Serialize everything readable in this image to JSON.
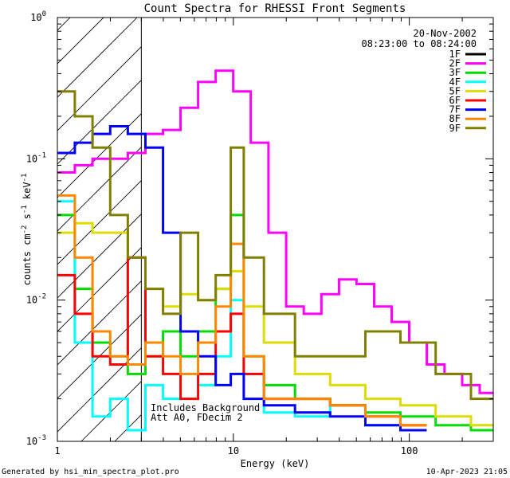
{
  "chart_data": {
    "type": "line",
    "title": "Count Spectra for RHESSI Front Segments",
    "xlabel": "Energy (keV)",
    "ylabel_parts": {
      "a": "counts cm",
      "b": "-2",
      "c": " s",
      "d": "-1",
      "e": " keV",
      "f": "-1"
    },
    "x_scale": "log",
    "y_scale": "log",
    "xlim": [
      1,
      300
    ],
    "ylim": [
      0.001,
      1
    ],
    "x_ticks": [
      {
        "v": 1,
        "label": "1"
      },
      {
        "v": 10,
        "label": "10"
      },
      {
        "v": 100,
        "label": "100"
      }
    ],
    "y_ticks": [
      {
        "v": 0.001,
        "base": "10",
        "exp": "-3"
      },
      {
        "v": 0.01,
        "base": "10",
        "exp": "-2"
      },
      {
        "v": 0.1,
        "base": "10",
        "exp": "-1"
      },
      {
        "v": 1,
        "base": "10",
        "exp": "0"
      }
    ],
    "date": "20-Nov-2002",
    "time_range": "08:23:00 to 08:24:00",
    "annotation_lines": [
      "Includes Background",
      "Att A0, FDecim 2"
    ],
    "hatch_region_keV": [
      1,
      3
    ],
    "series": [
      {
        "name": "1F",
        "color": "#000000",
        "x": [],
        "y": []
      },
      {
        "name": "2F",
        "color": "#ff00ff",
        "x": [
          1.12,
          1.41,
          1.78,
          2.24,
          2.82,
          3.55,
          4.47,
          5.62,
          7.08,
          8.91,
          11.2,
          14.1,
          17.8,
          22.4,
          28.2,
          35.5,
          44.7,
          56.2,
          70.8,
          89.1,
          112,
          141,
          178,
          224,
          282
        ],
        "y": [
          0.08,
          0.09,
          0.1,
          0.1,
          0.11,
          0.15,
          0.16,
          0.23,
          0.35,
          0.42,
          0.3,
          0.13,
          0.03,
          0.009,
          0.008,
          0.011,
          0.014,
          0.013,
          0.009,
          0.007,
          0.005,
          0.0035,
          0.003,
          0.0025,
          0.0022
        ]
      },
      {
        "name": "3F",
        "color": "#00dd00",
        "x": [
          1.12,
          1.41,
          1.78,
          2.24,
          2.82,
          3.55,
          4.47,
          5.62,
          7.08,
          8.91,
          10.5,
          12.5,
          17.8,
          28.2,
          44.7,
          70.8,
          112,
          178,
          282
        ],
        "y": [
          0.04,
          0.012,
          0.005,
          0.004,
          0.003,
          0.004,
          0.006,
          0.004,
          0.006,
          0.012,
          0.04,
          0.004,
          0.0025,
          0.002,
          0.0018,
          0.0016,
          0.0015,
          0.0013,
          0.0012
        ]
      },
      {
        "name": "4F",
        "color": "#00ffff",
        "x": [
          1.12,
          1.41,
          1.78,
          2.24,
          2.82,
          3.55,
          4.47,
          5.62,
          7.08,
          8.91,
          10.5,
          12.5,
          17.8,
          28.2,
          44.7,
          70.8,
          112
        ],
        "y": [
          0.05,
          0.005,
          0.0015,
          0.002,
          0.0012,
          0.0025,
          0.002,
          0.003,
          0.0025,
          0.004,
          0.01,
          0.003,
          0.0016,
          0.0015,
          0.0018,
          0.0013,
          0.0012
        ]
      },
      {
        "name": "5F",
        "color": "#dddd00",
        "x": [
          1.12,
          1.41,
          1.78,
          2.24,
          2.82,
          3.55,
          4.47,
          5.62,
          7.08,
          8.91,
          10.5,
          12.5,
          17.8,
          28.2,
          44.7,
          70.8,
          112,
          178,
          282
        ],
        "y": [
          0.03,
          0.035,
          0.03,
          0.03,
          0.02,
          0.012,
          0.009,
          0.011,
          0.01,
          0.012,
          0.016,
          0.009,
          0.005,
          0.003,
          0.0025,
          0.002,
          0.0018,
          0.0015,
          0.0013
        ]
      },
      {
        "name": "6F",
        "color": "#ff0000",
        "x": [
          1.12,
          1.41,
          1.78,
          2.24,
          2.82,
          3.55,
          4.47,
          5.62,
          7.08,
          8.91,
          10.5,
          12.5,
          17.8,
          28.2,
          44.7,
          70.8,
          112
        ],
        "y": [
          0.015,
          0.008,
          0.004,
          0.0035,
          0.02,
          0.004,
          0.003,
          0.002,
          0.003,
          0.006,
          0.008,
          0.003,
          0.002,
          0.002,
          0.0018,
          0.0015,
          0.0013
        ]
      },
      {
        "name": "7F",
        "color": "#0000ff",
        "x": [
          1.12,
          1.41,
          1.78,
          2.24,
          2.82,
          3.55,
          4.47,
          5.62,
          7.08,
          8.91,
          10.5,
          12.5,
          17.8,
          28.2,
          44.7,
          70.8,
          112
        ],
        "y": [
          0.11,
          0.13,
          0.15,
          0.17,
          0.15,
          0.12,
          0.03,
          0.006,
          0.004,
          0.0025,
          0.003,
          0.002,
          0.0018,
          0.0016,
          0.0015,
          0.0013,
          0.0012
        ]
      },
      {
        "name": "8F",
        "color": "#ff8800",
        "x": [
          1.12,
          1.41,
          1.78,
          2.24,
          2.82,
          3.55,
          4.47,
          5.62,
          7.08,
          8.91,
          10.5,
          12.5,
          17.8,
          28.2,
          44.7,
          70.8,
          112
        ],
        "y": [
          0.055,
          0.02,
          0.006,
          0.004,
          0.0035,
          0.005,
          0.004,
          0.003,
          0.005,
          0.009,
          0.025,
          0.004,
          0.002,
          0.002,
          0.0018,
          0.0015,
          0.0013
        ]
      },
      {
        "name": "9F",
        "color": "#808000",
        "x": [
          1.12,
          1.41,
          1.78,
          2.24,
          2.82,
          3.55,
          4.47,
          5.62,
          7.08,
          8.91,
          10.5,
          12.5,
          17.8,
          28.2,
          44.7,
          70.8,
          112,
          178,
          282
        ],
        "y": [
          0.3,
          0.2,
          0.12,
          0.04,
          0.02,
          0.012,
          0.008,
          0.03,
          0.01,
          0.015,
          0.12,
          0.02,
          0.008,
          0.004,
          0.004,
          0.006,
          0.005,
          0.003,
          0.002
        ]
      }
    ]
  },
  "footer": {
    "left": "Generated by hsi_min_spectra_plot.pro",
    "right": "10-Apr-2023 21:05"
  }
}
